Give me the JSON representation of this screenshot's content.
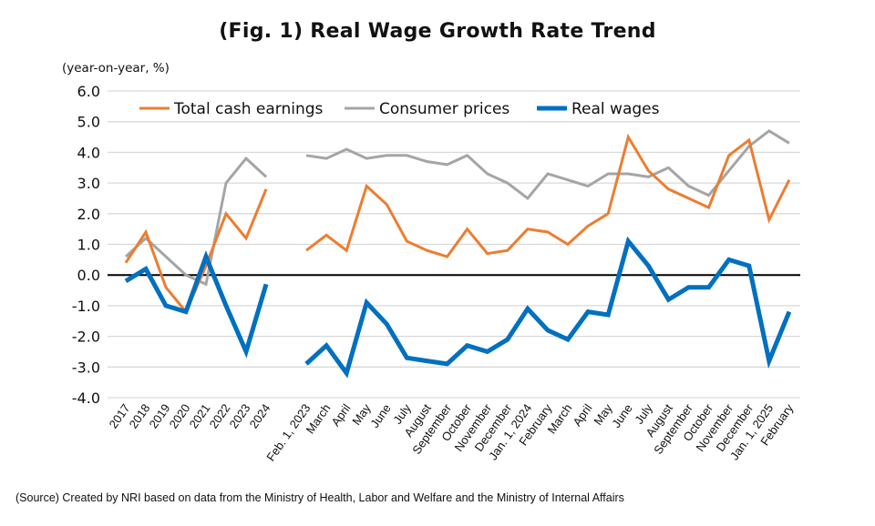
{
  "title": "(Fig. 1) Real Wage Growth Rate Trend",
  "unit_label": "(year-on-year, %)",
  "source": "(Source) Created by NRI based on data from the Ministry of Health, Labor and Welfare and the Ministry of Internal Affairs",
  "chart_data": {
    "type": "line",
    "title": "(Fig. 1) Real Wage Growth Rate Trend",
    "ylabel": "(year-on-year, %)",
    "xlabel": "",
    "ylim": [
      -4.0,
      6.0
    ],
    "yticks": [
      "6.0",
      "5.0",
      "4.0",
      "3.0",
      "2.0",
      "1.0",
      "0.0",
      "-1.0",
      "-2.0",
      "-3.0",
      "-4.0"
    ],
    "grid": true,
    "legend_position": "top",
    "segments": [
      {
        "name": "annual",
        "categories": [
          "2017",
          "2018",
          "2019",
          "2020",
          "2021",
          "2022",
          "2023",
          "2024"
        ],
        "series": [
          {
            "name": "Total cash earnings",
            "color": "#ED7D31",
            "values": [
              0.4,
              1.4,
              -0.4,
              -1.2,
              0.3,
              2.0,
              1.2,
              2.8
            ]
          },
          {
            "name": "Consumer prices",
            "color": "#A5A5A5",
            "values": [
              0.6,
              1.2,
              0.6,
              0.0,
              -0.3,
              3.0,
              3.8,
              3.2
            ]
          },
          {
            "name": "Real wages",
            "color": "#0070C0",
            "values": [
              -0.2,
              0.2,
              -1.0,
              -1.2,
              0.6,
              -1.0,
              -2.5,
              -0.3
            ]
          }
        ]
      },
      {
        "name": "monthly",
        "categories": [
          "Feb. 1, 2023",
          "March",
          "April",
          "May",
          "June",
          "July",
          "August",
          "September",
          "October",
          "November",
          "December",
          "Jan. 1, 2024",
          "February",
          "March",
          "April",
          "May",
          "June",
          "July",
          "August",
          "September",
          "October",
          "November",
          "December",
          "Jan. 1, 2025",
          "February"
        ],
        "series": [
          {
            "name": "Total cash earnings",
            "color": "#ED7D31",
            "values": [
              0.8,
              1.3,
              0.8,
              2.9,
              2.3,
              1.1,
              0.8,
              0.6,
              1.5,
              0.7,
              0.8,
              1.5,
              1.4,
              1.0,
              1.6,
              2.0,
              4.5,
              3.4,
              2.8,
              2.5,
              2.2,
              3.9,
              4.4,
              1.8,
              3.1
            ]
          },
          {
            "name": "Consumer prices",
            "color": "#A5A5A5",
            "values": [
              3.9,
              3.8,
              4.1,
              3.8,
              3.9,
              3.9,
              3.7,
              3.6,
              3.9,
              3.3,
              3.0,
              2.5,
              3.3,
              3.1,
              2.9,
              3.3,
              3.3,
              3.2,
              3.5,
              2.9,
              2.6,
              3.4,
              4.2,
              4.7,
              4.3
            ]
          },
          {
            "name": "Real wages",
            "color": "#0070C0",
            "values": [
              -2.9,
              -2.3,
              -3.2,
              -0.9,
              -1.6,
              -2.7,
              -2.8,
              -2.9,
              -2.3,
              -2.5,
              -2.1,
              -1.1,
              -1.8,
              -2.1,
              -1.2,
              -1.3,
              1.1,
              0.3,
              -0.8,
              -0.4,
              -0.4,
              0.5,
              0.3,
              -2.8,
              -1.2
            ]
          }
        ]
      }
    ],
    "legend": [
      {
        "name": "Total cash earnings",
        "color": "#ED7D31"
      },
      {
        "name": "Consumer prices",
        "color": "#A5A5A5"
      },
      {
        "name": "Real wages",
        "color": "#0070C0"
      }
    ]
  }
}
